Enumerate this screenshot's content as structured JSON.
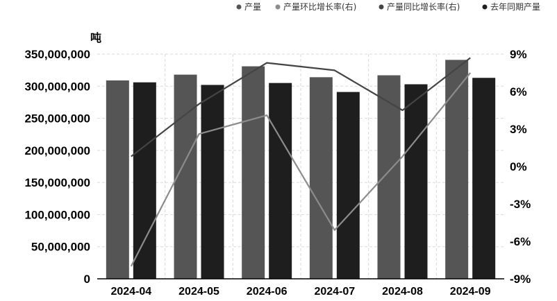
{
  "chart_data": {
    "type": "bar",
    "categories": [
      "2024-04",
      "2024-05",
      "2024-06",
      "2024-07",
      "2024-08",
      "2024-09"
    ],
    "y_unit_label": "吨",
    "y_left": {
      "min": 0,
      "max": 350000000,
      "ticks": [
        "0",
        "50,000,000",
        "100,000,000",
        "150,000,000",
        "200,000,000",
        "250,000,000",
        "300,000,000",
        "350,000,000"
      ]
    },
    "y_right": {
      "min": -9,
      "max": 9,
      "ticks": [
        "-9%",
        "-6%",
        "-3%",
        "0%",
        "3%",
        "6%",
        "9%"
      ]
    },
    "grid": true,
    "legend_position": "top-right",
    "series": [
      {
        "name": "产量",
        "kind": "bar",
        "axis": "left",
        "color": "#555555",
        "values": [
          309000000,
          318000000,
          331000000,
          314000000,
          317000000,
          341000000
        ]
      },
      {
        "name": "产量环比增长率(右)",
        "kind": "line",
        "axis": "right",
        "color": "#8c8c8c",
        "values": [
          -8.0,
          2.6,
          4.1,
          -5.1,
          0.8,
          7.5
        ]
      },
      {
        "name": "产量同比增长率(右)",
        "kind": "line",
        "axis": "right",
        "color": "#444444",
        "values": [
          0.8,
          5.0,
          8.3,
          7.7,
          4.5,
          8.7
        ]
      },
      {
        "name": "去年同期产量",
        "kind": "bar",
        "axis": "left",
        "color": "#1e1e1e",
        "values": [
          306000000,
          302000000,
          305000000,
          291000000,
          303000000,
          313000000
        ]
      }
    ]
  }
}
